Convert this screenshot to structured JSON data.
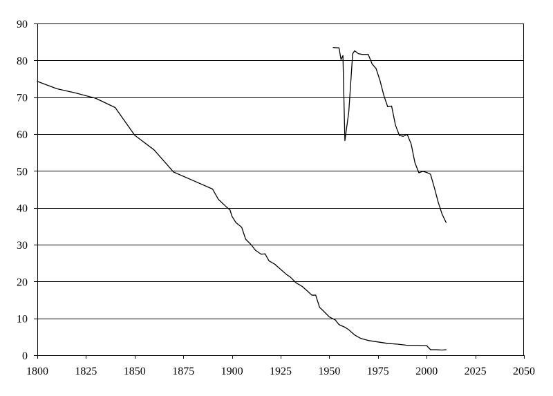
{
  "chart_data": {
    "type": "line",
    "title": "",
    "xlabel": "",
    "ylabel": "",
    "xlim": [
      1800,
      2050
    ],
    "ylim": [
      0,
      90
    ],
    "x_ticks": [
      1800,
      1825,
      1850,
      1875,
      1900,
      1925,
      1950,
      1975,
      2000,
      2025,
      2050
    ],
    "y_ticks": [
      0,
      10,
      20,
      30,
      40,
      50,
      60,
      70,
      80,
      90
    ],
    "x_tick_labels": [
      "1800",
      "1825",
      "1850",
      "1875",
      "1900",
      "1925",
      "1950",
      "1975",
      "2000",
      "2025",
      "2050"
    ],
    "y_tick_labels": [
      "0",
      "10",
      "20",
      "30",
      "40",
      "50",
      "60",
      "70",
      "80",
      "90"
    ],
    "grid": {
      "horizontal": true,
      "vertical": false
    },
    "legend": "none",
    "line_color": "#000000",
    "series": [
      {
        "points": [
          [
            1800,
            74.3
          ],
          [
            1810,
            72.3
          ],
          [
            1820,
            71.1
          ],
          [
            1830,
            69.7
          ],
          [
            1840,
            67.2
          ],
          [
            1850,
            59.7
          ],
          [
            1860,
            55.7
          ],
          [
            1870,
            49.7
          ],
          [
            1880,
            47.4
          ],
          [
            1890,
            45.1
          ],
          [
            1893,
            42.3
          ],
          [
            1897,
            40.3
          ],
          [
            1899,
            39.4
          ],
          [
            1900,
            37.7
          ],
          [
            1902,
            36.0
          ],
          [
            1905,
            34.7
          ],
          [
            1907,
            31.5
          ],
          [
            1910,
            29.9
          ],
          [
            1912,
            28.5
          ],
          [
            1915,
            27.4
          ],
          [
            1917,
            27.5
          ],
          [
            1919,
            25.6
          ],
          [
            1922,
            24.7
          ],
          [
            1925,
            23.3
          ],
          [
            1928,
            21.9
          ],
          [
            1930,
            21.2
          ],
          [
            1933,
            19.6
          ],
          [
            1936,
            18.7
          ],
          [
            1939,
            17.3
          ],
          [
            1941,
            16.3
          ],
          [
            1943,
            16.3
          ],
          [
            1945,
            13.0
          ],
          [
            1947,
            12.0
          ],
          [
            1950,
            10.4
          ],
          [
            1953,
            9.6
          ],
          [
            1955,
            8.3
          ],
          [
            1958,
            7.6
          ],
          [
            1960,
            6.9
          ],
          [
            1963,
            5.5
          ],
          [
            1966,
            4.6
          ],
          [
            1970,
            4.0
          ],
          [
            1975,
            3.6
          ],
          [
            1980,
            3.2
          ],
          [
            1985,
            3.0
          ],
          [
            1990,
            2.7
          ],
          [
            1995,
            2.7
          ],
          [
            2000,
            2.6
          ],
          [
            2002,
            1.5
          ],
          [
            2005,
            1.5
          ],
          [
            2008,
            1.4
          ],
          [
            2010,
            1.5
          ]
        ]
      },
      {
        "points": [
          [
            1952,
            83.5
          ],
          [
            1954,
            83.4
          ],
          [
            1955,
            83.4
          ],
          [
            1956,
            80.2
          ],
          [
            1957,
            81.3
          ],
          [
            1958,
            58.2
          ],
          [
            1960,
            66.0
          ],
          [
            1962,
            81.8
          ],
          [
            1963,
            82.6
          ],
          [
            1965,
            81.8
          ],
          [
            1967,
            81.6
          ],
          [
            1970,
            81.6
          ],
          [
            1972,
            79.0
          ],
          [
            1974,
            77.8
          ],
          [
            1976,
            74.6
          ],
          [
            1978,
            70.5
          ],
          [
            1980,
            67.4
          ],
          [
            1982,
            67.6
          ],
          [
            1984,
            62.4
          ],
          [
            1986,
            59.6
          ],
          [
            1988,
            59.4
          ],
          [
            1990,
            59.9
          ],
          [
            1992,
            57.4
          ],
          [
            1994,
            52.2
          ],
          [
            1996,
            49.5
          ],
          [
            1998,
            49.9
          ],
          [
            2000,
            49.6
          ],
          [
            2002,
            49.1
          ],
          [
            2004,
            45.4
          ],
          [
            2006,
            41.4
          ],
          [
            2008,
            38.2
          ],
          [
            2010,
            36.0
          ]
        ]
      }
    ]
  }
}
